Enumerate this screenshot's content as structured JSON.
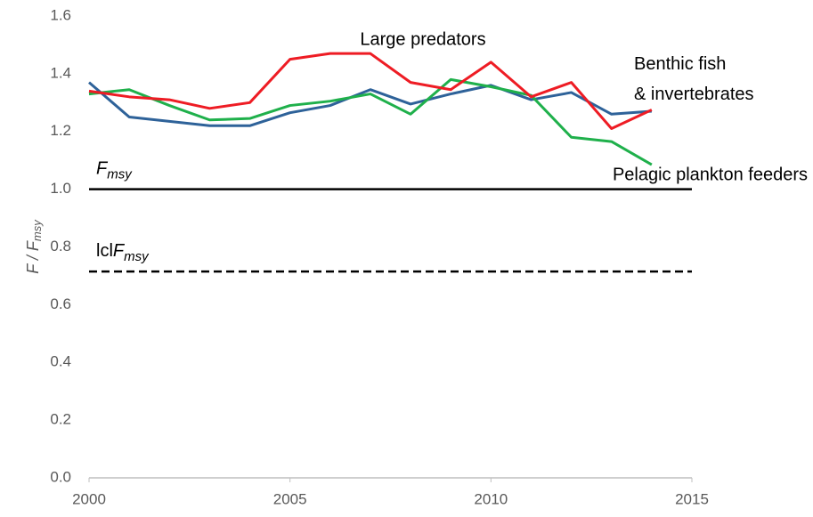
{
  "chart_data": {
    "type": "line",
    "ylabel": {
      "symbol": "F",
      "separator": " / ",
      "subscript": "msy"
    },
    "x": [
      2000,
      2001,
      2002,
      2003,
      2004,
      2005,
      2006,
      2007,
      2008,
      2009,
      2010,
      2011,
      2012,
      2013,
      2014
    ],
    "series": [
      {
        "name": "Benthic fish & invertebrates",
        "color": "#2e6299",
        "values": [
          1.37,
          1.25,
          1.235,
          1.22,
          1.22,
          1.265,
          1.29,
          1.345,
          1.295,
          1.33,
          1.36,
          1.31,
          1.335,
          1.26,
          1.27
        ]
      },
      {
        "name": "Pelagic plankton feeders",
        "color": "#1fb04b",
        "values": [
          1.33,
          1.345,
          1.29,
          1.24,
          1.245,
          1.29,
          1.305,
          1.33,
          1.26,
          1.38,
          1.355,
          1.325,
          1.18,
          1.165,
          1.085
        ]
      },
      {
        "name": "Large predators",
        "color": "#ee1c24",
        "values": [
          1.34,
          1.32,
          1.31,
          1.28,
          1.3,
          1.45,
          1.47,
          1.47,
          1.37,
          1.345,
          1.44,
          1.32,
          1.37,
          1.21,
          1.275
        ]
      }
    ],
    "reference_lines": [
      {
        "value": 1.0,
        "symbol": "F",
        "subscript": "msy",
        "style": "solid"
      },
      {
        "value": 0.715,
        "label": "lcl",
        "symbol": "F",
        "subscript": "msy",
        "style": "dashed"
      }
    ],
    "xlim": [
      2000,
      2015
    ],
    "xticks": [
      2000,
      2005,
      2010,
      2015
    ],
    "ylim": [
      0,
      1.6
    ],
    "yticks": [
      {
        "value": 0,
        "label": "0.0"
      },
      0.2,
      0.4,
      0.6,
      0.8,
      {
        "value": 1,
        "label": "1.0"
      },
      1.2,
      1.4,
      1.6
    ]
  }
}
